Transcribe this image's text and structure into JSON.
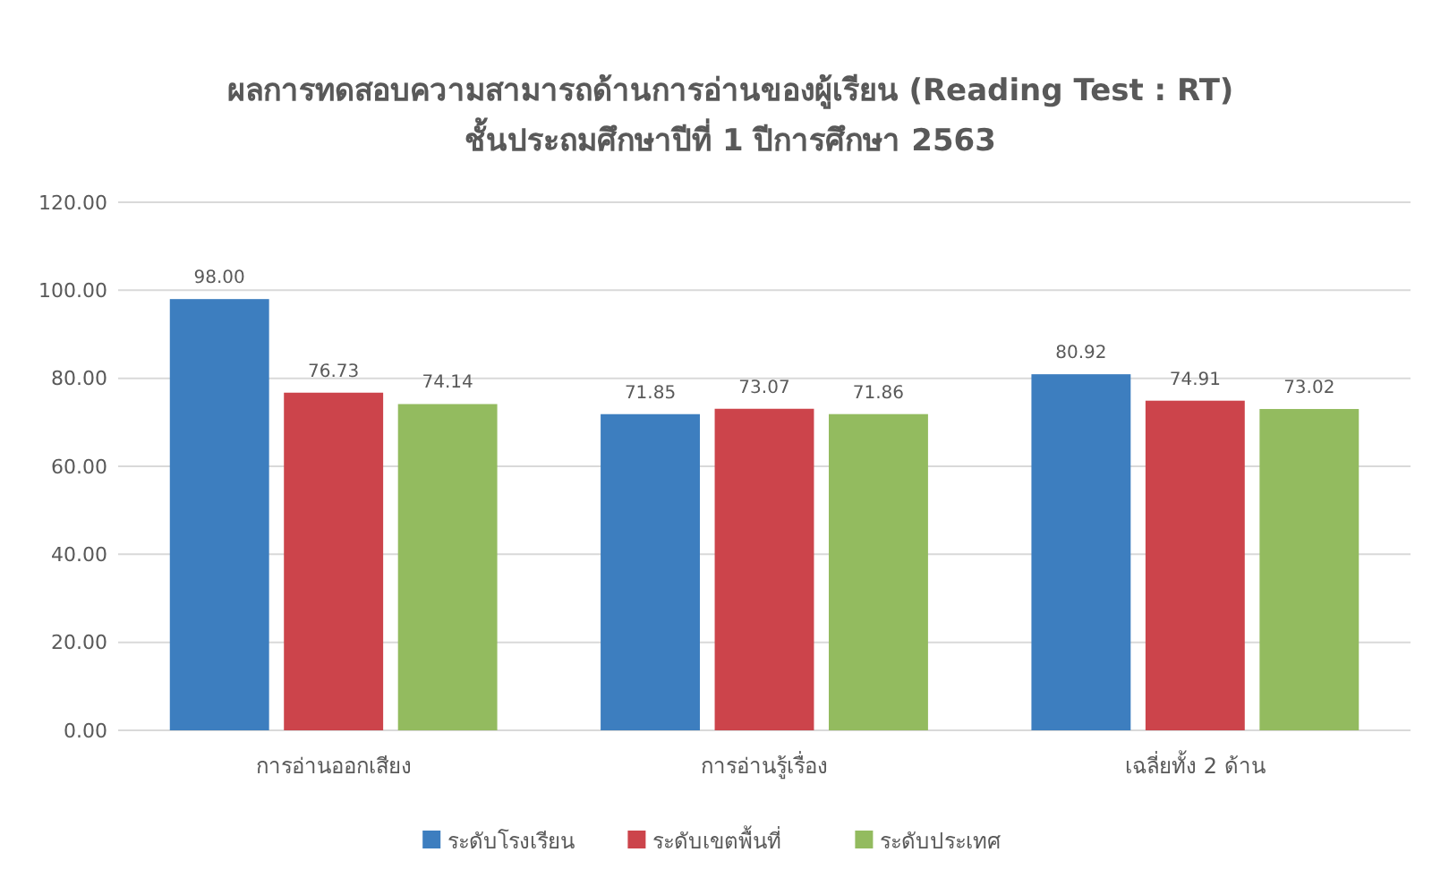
{
  "chart_data": {
    "type": "bar",
    "title": "ผลการทดสอบความสามารถด้านการอ่านของผู้เรียน (Reading Test : RT)",
    "subtitle": "ชั้นประถมศึกษาปีที่ 1 ปีการศึกษา 2563",
    "categories": [
      "การอ่านออกเสียง",
      "การอ่านรู้เรื่อง",
      "เฉลี่ยทั้ง 2 ด้าน"
    ],
    "series": [
      {
        "name": "ระดับโรงเรียน",
        "color": "#3d7ebf",
        "values": [
          98.0,
          71.85,
          80.92
        ],
        "value_labels": [
          "98.00",
          "71.85",
          "80.92"
        ]
      },
      {
        "name": "ระดับเขตพื้นที่",
        "color": "#cc444b",
        "values": [
          76.73,
          73.07,
          74.91
        ],
        "value_labels": [
          "76.73",
          "73.07",
          "74.91"
        ]
      },
      {
        "name": "ระดับประเทศ",
        "color": "#93bb5f",
        "values": [
          74.14,
          71.86,
          73.02
        ],
        "value_labels": [
          "74.14",
          "71.86",
          "73.02"
        ]
      }
    ],
    "ylim": [
      0,
      120
    ],
    "yticks": [
      {
        "value": 0,
        "label": "0.00"
      },
      {
        "value": 20,
        "label": "20.00"
      },
      {
        "value": 40,
        "label": "40.00"
      },
      {
        "value": 60,
        "label": "60.00"
      },
      {
        "value": 80,
        "label": "80.00"
      },
      {
        "value": 100,
        "label": "100.00"
      },
      {
        "value": 120,
        "label": "120.00"
      }
    ],
    "grid": "y",
    "legend": "bottom"
  }
}
